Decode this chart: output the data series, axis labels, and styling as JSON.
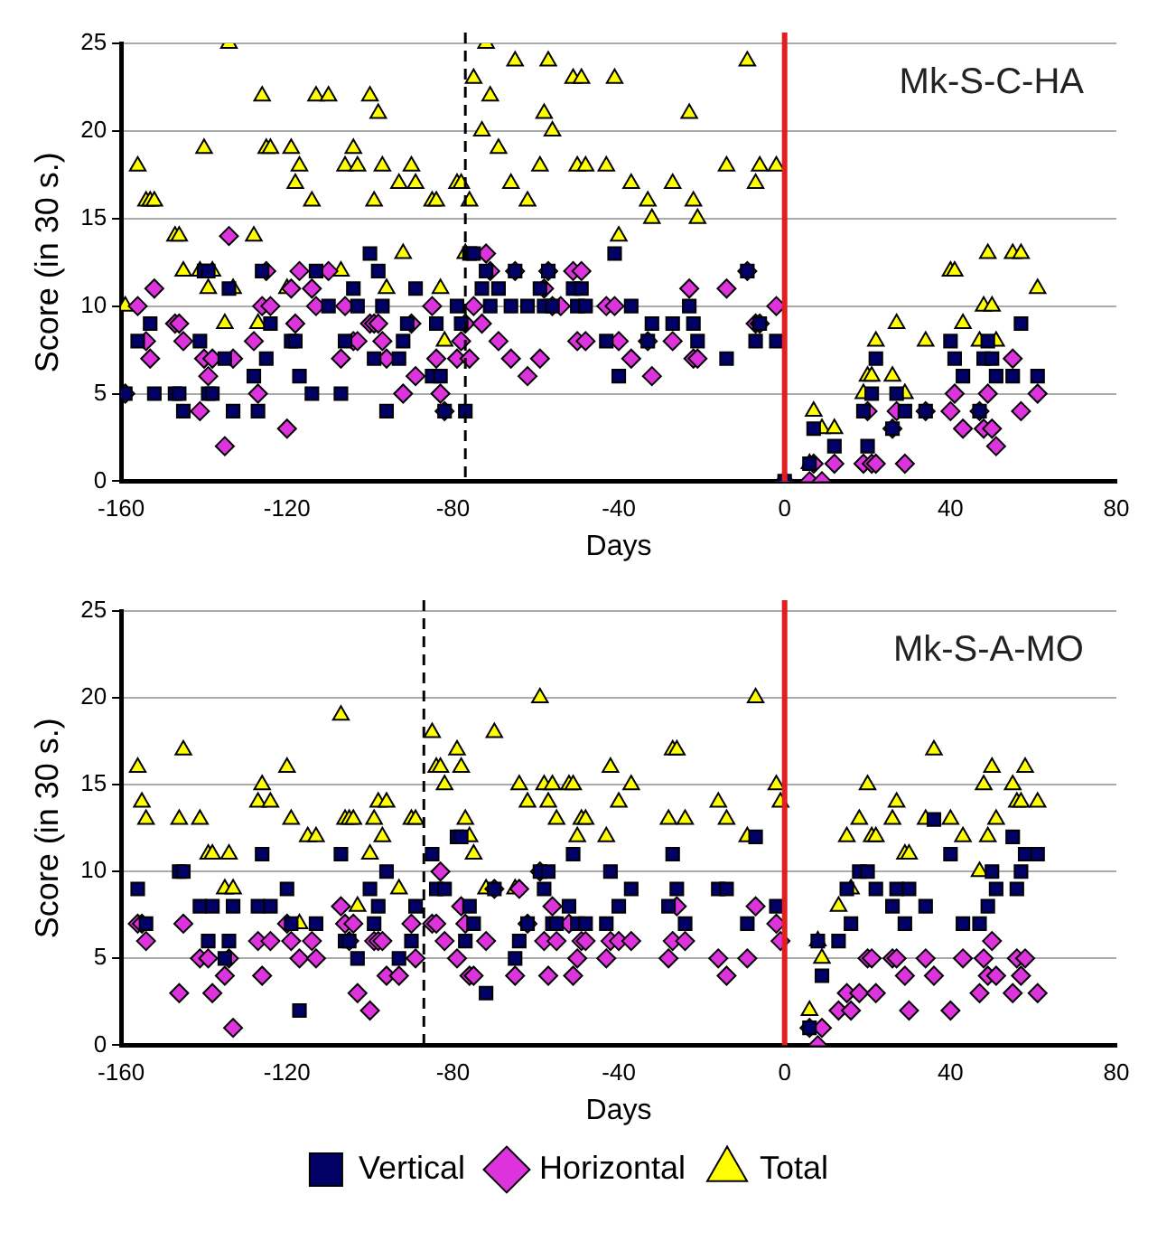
{
  "chart_data": [
    {
      "type": "scatter",
      "title": "Mk-S-C-HA",
      "xlabel": "Days",
      "ylabel": "Score (in 30 s.)",
      "xlim": [
        -160,
        80
      ],
      "xticks": [
        -160,
        -120,
        -80,
        -40,
        0,
        40,
        80
      ],
      "ylim": [
        0,
        25
      ],
      "yticks": [
        0,
        5,
        10,
        15,
        20,
        25
      ],
      "grid": "y",
      "legend": false,
      "ref_lines": [
        {
          "axis": "x",
          "value": -77,
          "color": "#000000",
          "line_style": "dashed"
        },
        {
          "axis": "x",
          "value": 0,
          "color": "#e02020",
          "line_style": "solid"
        }
      ],
      "series": [
        {
          "color": "#000066",
          "marker": "square",
          "x": [
            -159,
            -156,
            -153,
            -152,
            -147,
            -146,
            -145,
            -141,
            -140,
            -139,
            -139,
            -138,
            -135,
            -134,
            -133,
            -128,
            -127,
            -126,
            -125,
            -124,
            -119,
            -118,
            -117,
            -114,
            -113,
            -110,
            -107,
            -106,
            -104,
            -103,
            -100,
            -99,
            -98,
            -97,
            -96,
            -93,
            -92,
            -91,
            -89,
            -85,
            -84,
            -83,
            -82,
            -79,
            -78,
            -77,
            -76,
            -75,
            -73,
            -72,
            -71,
            -69,
            -66,
            -65,
            -62,
            -59,
            -58,
            -57,
            -56,
            -51,
            -50,
            -49,
            -48,
            -43,
            -41,
            -40,
            -37,
            -33,
            -32,
            -27,
            -23,
            -22,
            -21,
            -14,
            -9,
            -7,
            -6,
            -2,
            0,
            6,
            7,
            12,
            19,
            20,
            21,
            22,
            26,
            27,
            29,
            34,
            40,
            41,
            43,
            47,
            48,
            49,
            50,
            51,
            55,
            57,
            61
          ],
          "values": [
            5,
            8,
            9,
            5,
            5,
            5,
            4,
            8,
            12,
            12,
            5,
            5,
            7,
            11,
            4,
            6,
            4,
            12,
            7,
            9,
            8,
            8,
            6,
            5,
            12,
            10,
            5,
            8,
            11,
            10,
            13,
            7,
            12,
            10,
            4,
            7,
            8,
            9,
            11,
            6,
            9,
            6,
            4,
            10,
            9,
            4,
            13,
            13,
            11,
            12,
            10,
            11,
            10,
            12,
            10,
            11,
            10,
            12,
            10,
            11,
            10,
            11,
            10,
            8,
            13,
            6,
            10,
            8,
            9,
            9,
            10,
            9,
            8,
            7,
            12,
            8,
            9,
            8,
            0,
            1,
            3,
            2,
            4,
            2,
            5,
            7,
            3,
            5,
            4,
            4,
            8,
            7,
            6,
            4,
            7,
            8,
            7,
            6,
            6,
            9,
            6
          ]
        },
        {
          "color": "#dd33dd",
          "marker": "diamond",
          "x": [
            -159,
            -156,
            -154,
            -153,
            -152,
            -147,
            -146,
            -145,
            -141,
            -140,
            -139,
            -138,
            -135,
            -134,
            -133,
            -128,
            -127,
            -126,
            -125,
            -124,
            -120,
            -119,
            -118,
            -117,
            -114,
            -113,
            -110,
            -107,
            -106,
            -104,
            -103,
            -100,
            -99,
            -98,
            -97,
            -96,
            -92,
            -90,
            -89,
            -85,
            -84,
            -83,
            -82,
            -79,
            -78,
            -77,
            -76,
            -75,
            -73,
            -72,
            -71,
            -69,
            -66,
            -65,
            -62,
            -59,
            -58,
            -57,
            -56,
            -54,
            -51,
            -50,
            -49,
            -48,
            -43,
            -41,
            -40,
            -37,
            -33,
            -32,
            -27,
            -23,
            -22,
            -21,
            -14,
            -9,
            -7,
            -6,
            -2,
            0,
            6,
            7,
            9,
            12,
            19,
            20,
            21,
            22,
            26,
            27,
            29,
            34,
            40,
            41,
            43,
            47,
            48,
            49,
            50,
            51,
            55,
            57,
            61
          ],
          "values": [
            5,
            10,
            8,
            7,
            11,
            9,
            9,
            8,
            4,
            7,
            6,
            7,
            2,
            14,
            7,
            8,
            5,
            10,
            12,
            10,
            3,
            11,
            9,
            12,
            11,
            10,
            12,
            7,
            10,
            8,
            8,
            9,
            9,
            9,
            8,
            7,
            5,
            9,
            6,
            10,
            7,
            5,
            4,
            7,
            8,
            9,
            7,
            10,
            9,
            13,
            12,
            8,
            7,
            12,
            6,
            7,
            11,
            12,
            10,
            10,
            12,
            8,
            12,
            8,
            10,
            10,
            8,
            7,
            8,
            6,
            8,
            11,
            7,
            7,
            11,
            12,
            9,
            9,
            10,
            0,
            0,
            1,
            0,
            1,
            1,
            4,
            1,
            1,
            3,
            4,
            1,
            4,
            4,
            5,
            3,
            4,
            3,
            5,
            3,
            2,
            7,
            4,
            5
          ]
        },
        {
          "color": "#ffff00",
          "marker": "triangle",
          "x": [
            -159,
            -156,
            -154,
            -153,
            -152,
            -147,
            -146,
            -145,
            -141,
            -140,
            -139,
            -138,
            -134,
            -135,
            -133,
            -128,
            -127,
            -126,
            -125,
            -124,
            -120,
            -119,
            -118,
            -117,
            -114,
            -113,
            -110,
            -107,
            -106,
            -104,
            -103,
            -100,
            -99,
            -98,
            -97,
            -96,
            -93,
            -92,
            -90,
            -89,
            -85,
            -84,
            -83,
            -82,
            -79,
            -78,
            -77,
            -76,
            -75,
            -73,
            -72,
            -71,
            -69,
            -66,
            -65,
            -62,
            -59,
            -58,
            -57,
            -56,
            -51,
            -50,
            -49,
            -48,
            -43,
            -41,
            -40,
            -37,
            -33,
            -32,
            -27,
            -23,
            -22,
            -21,
            -14,
            -9,
            -7,
            -6,
            -2,
            0,
            6,
            7,
            9,
            12,
            19,
            20,
            21,
            22,
            26,
            27,
            29,
            34,
            40,
            41,
            43,
            47,
            48,
            50,
            49,
            51,
            55,
            57,
            61
          ],
          "values": [
            10,
            18,
            16,
            16,
            16,
            14,
            14,
            12,
            12,
            19,
            11,
            12,
            25,
            9,
            11,
            14,
            9,
            22,
            19,
            19,
            11,
            19,
            17,
            18,
            16,
            22,
            22,
            12,
            18,
            19,
            18,
            22,
            16,
            21,
            18,
            11,
            17,
            13,
            18,
            17,
            16,
            16,
            11,
            8,
            17,
            17,
            13,
            16,
            23,
            20,
            25,
            22,
            19,
            17,
            24,
            16,
            18,
            21,
            24,
            20,
            23,
            18,
            23,
            18,
            18,
            23,
            14,
            17,
            16,
            15,
            17,
            21,
            16,
            15,
            18,
            24,
            17,
            18,
            18,
            0,
            1,
            4,
            3,
            3,
            5,
            6,
            6,
            8,
            6,
            9,
            5,
            8,
            12,
            12,
            9,
            8,
            10,
            10,
            13,
            8,
            13,
            13,
            11
          ]
        }
      ]
    },
    {
      "type": "scatter",
      "title": "Mk-S-A-MO",
      "xlabel": "Days",
      "ylabel": "Score (in 30 s.)",
      "xlim": [
        -160,
        80
      ],
      "xticks": [
        -160,
        -120,
        -80,
        -40,
        0,
        40,
        80
      ],
      "ylim": [
        0,
        25
      ],
      "yticks": [
        0,
        5,
        10,
        15,
        20,
        25
      ],
      "grid": "y",
      "legend": "bottom",
      "ref_lines": [
        {
          "axis": "x",
          "value": -87,
          "color": "#000000",
          "line_style": "dashed"
        },
        {
          "axis": "x",
          "value": 0,
          "color": "#e02020",
          "line_style": "solid"
        }
      ],
      "series": [
        {
          "name": "Vertical",
          "color": "#000066",
          "marker": "square",
          "x": [
            -156,
            -154,
            -146,
            -145,
            -141,
            -139,
            -138,
            -135,
            -134,
            -133,
            -127,
            -126,
            -124,
            -120,
            -119,
            -117,
            -113,
            -107,
            -106,
            -105,
            -103,
            -100,
            -99,
            -98,
            -96,
            -93,
            -90,
            -89,
            -85,
            -84,
            -82,
            -79,
            -78,
            -77,
            -76,
            -75,
            -72,
            -70,
            -65,
            -64,
            -62,
            -59,
            -58,
            -57,
            -56,
            -55,
            -52,
            -51,
            -50,
            -48,
            -43,
            -42,
            -40,
            -37,
            -28,
            -27,
            -26,
            -24,
            -16,
            -14,
            -9,
            -7,
            -2,
            6,
            8,
            9,
            13,
            15,
            16,
            18,
            20,
            22,
            26,
            27,
            29,
            30,
            34,
            36,
            40,
            43,
            47,
            49,
            50,
            51,
            55,
            56,
            57,
            58,
            61
          ],
          "values": [
            9,
            7,
            10,
            10,
            8,
            6,
            8,
            5,
            6,
            8,
            8,
            11,
            8,
            9,
            7,
            2,
            7,
            11,
            6,
            6,
            5,
            9,
            7,
            8,
            10,
            5,
            6,
            8,
            11,
            9,
            9,
            12,
            12,
            6,
            8,
            7,
            3,
            9,
            5,
            6,
            7,
            10,
            9,
            10,
            7,
            7,
            8,
            11,
            7,
            7,
            7,
            10,
            8,
            9,
            8,
            11,
            9,
            7,
            9,
            9,
            7,
            12,
            8,
            1,
            6,
            4,
            6,
            9,
            7,
            10,
            10,
            9,
            8,
            9,
            7,
            9,
            8,
            13,
            11,
            7,
            7,
            8,
            10,
            9,
            12,
            9,
            10,
            11,
            11
          ]
        },
        {
          "name": "Horizontal",
          "color": "#dd33dd",
          "marker": "diamond",
          "x": [
            -156,
            -155,
            -154,
            -146,
            -145,
            -141,
            -139,
            -138,
            -135,
            -134,
            -133,
            -127,
            -126,
            -124,
            -120,
            -119,
            -117,
            -114,
            -113,
            -107,
            -106,
            -105,
            -104,
            -103,
            -100,
            -99,
            -98,
            -97,
            -96,
            -93,
            -90,
            -89,
            -85,
            -84,
            -83,
            -82,
            -79,
            -78,
            -77,
            -76,
            -75,
            -72,
            -70,
            -65,
            -64,
            -62,
            -59,
            -58,
            -57,
            -56,
            -55,
            -52,
            -51,
            -50,
            -49,
            -48,
            -43,
            -42,
            -40,
            -37,
            -28,
            -27,
            -26,
            -24,
            -16,
            -14,
            -9,
            -7,
            -2,
            -1,
            6,
            8,
            9,
            13,
            15,
            16,
            18,
            20,
            21,
            22,
            26,
            27,
            29,
            30,
            34,
            36,
            40,
            43,
            47,
            48,
            49,
            50,
            51,
            55,
            56,
            57,
            58,
            61
          ],
          "values": [
            7,
            7,
            6,
            3,
            7,
            5,
            5,
            3,
            4,
            5,
            1,
            6,
            4,
            6,
            7,
            6,
            5,
            6,
            5,
            8,
            7,
            6,
            7,
            3,
            2,
            6,
            6,
            6,
            4,
            4,
            7,
            5,
            7,
            7,
            10,
            6,
            5,
            8,
            7,
            4,
            4,
            6,
            9,
            4,
            9,
            7,
            10,
            6,
            4,
            8,
            6,
            7,
            4,
            5,
            6,
            6,
            5,
            6,
            6,
            6,
            5,
            6,
            8,
            6,
            5,
            4,
            5,
            8,
            7,
            6,
            1,
            0,
            1,
            2,
            3,
            2,
            3,
            5,
            5,
            3,
            5,
            5,
            4,
            2,
            5,
            4,
            2,
            5,
            3,
            5,
            4,
            6,
            4,
            3,
            5,
            4,
            5,
            3
          ]
        },
        {
          "name": "Total",
          "color": "#ffff00",
          "marker": "triangle",
          "x": [
            -156,
            -155,
            -154,
            -146,
            -145,
            -141,
            -139,
            -138,
            -135,
            -134,
            -133,
            -127,
            -126,
            -124,
            -120,
            -119,
            -117,
            -115,
            -113,
            -107,
            -106,
            -105,
            -104,
            -103,
            -100,
            -99,
            -98,
            -97,
            -96,
            -93,
            -90,
            -89,
            -85,
            -84,
            -83,
            -82,
            -79,
            -78,
            -77,
            -76,
            -75,
            -72,
            -70,
            -65,
            -64,
            -62,
            -59,
            -58,
            -57,
            -56,
            -55,
            -52,
            -51,
            -50,
            -49,
            -48,
            -43,
            -42,
            -40,
            -37,
            -28,
            -27,
            -26,
            -24,
            -16,
            -14,
            -9,
            -7,
            -2,
            -1,
            6,
            8,
            9,
            13,
            15,
            16,
            18,
            20,
            21,
            22,
            26,
            27,
            29,
            30,
            34,
            36,
            40,
            43,
            47,
            48,
            49,
            50,
            51,
            55,
            56,
            57,
            58,
            61
          ],
          "values": [
            16,
            14,
            13,
            13,
            17,
            13,
            11,
            11,
            9,
            11,
            9,
            14,
            15,
            14,
            16,
            13,
            7,
            12,
            12,
            19,
            13,
            13,
            13,
            8,
            11,
            13,
            14,
            12,
            14,
            9,
            13,
            13,
            18,
            16,
            16,
            15,
            17,
            16,
            13,
            12,
            11,
            9,
            18,
            9,
            15,
            14,
            20,
            15,
            14,
            15,
            13,
            15,
            15,
            12,
            13,
            13,
            12,
            16,
            14,
            15,
            13,
            17,
            17,
            13,
            14,
            13,
            12,
            20,
            15,
            14,
            2,
            6,
            5,
            8,
            12,
            9,
            13,
            15,
            12,
            12,
            13,
            14,
            11,
            11,
            13,
            17,
            13,
            12,
            10,
            15,
            12,
            16,
            13,
            15,
            14,
            14,
            16,
            14
          ]
        }
      ]
    }
  ]
}
